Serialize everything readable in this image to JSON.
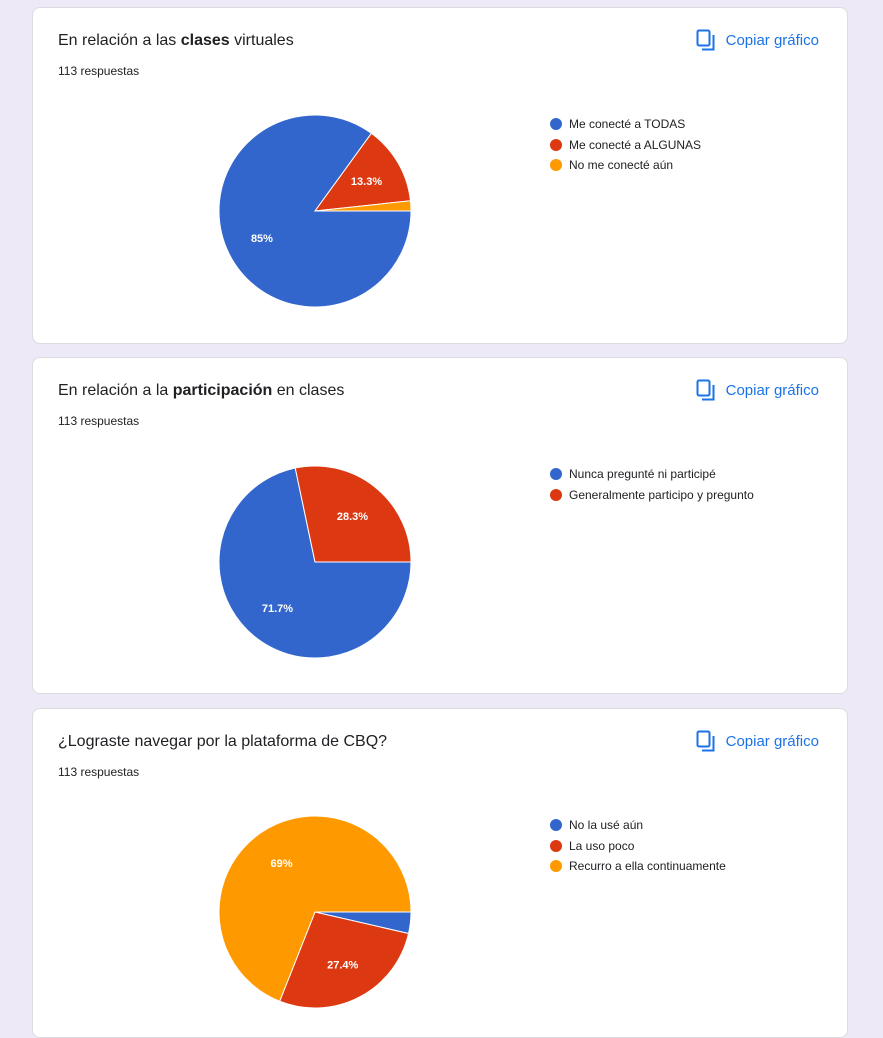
{
  "copy_label": "Copiar gráfico",
  "colors": {
    "blue": "#3366cc",
    "red": "#dc3912",
    "orange": "#ff9900",
    "accent": "#1a73e8"
  },
  "cards": [
    {
      "title_pre": "En relación a las ",
      "title_bold": "clases",
      "title_post": " virtuales",
      "count": "113 respuestas"
    },
    {
      "title_pre": "En relación a la ",
      "title_bold": "participación",
      "title_post": " en clases",
      "count": "113 respuestas"
    },
    {
      "title_pre": "¿Lograste navegar por la plataforma de CBQ?",
      "title_bold": "",
      "title_post": "",
      "count": "113 respuestas"
    }
  ],
  "chart_data": [
    {
      "type": "pie",
      "title": "En relación a las clases virtuales",
      "legend": "right",
      "slices": [
        {
          "label": "Me conecté a TODAS",
          "value": 85.0,
          "color": "#3366cc",
          "value_label": "85%"
        },
        {
          "label": "Me conecté a ALGUNAS",
          "value": 13.3,
          "color": "#dc3912",
          "value_label": "13.3%"
        },
        {
          "label": "No me conecté aún",
          "value": 1.7,
          "color": "#ff9900",
          "value_label": ""
        }
      ]
    },
    {
      "type": "pie",
      "title": "En relación a la participación en clases",
      "legend": "right",
      "slices": [
        {
          "label": "Nunca pregunté ni participé",
          "value": 71.7,
          "color": "#3366cc",
          "value_label": "71.7%"
        },
        {
          "label": "Generalmente participo y pregunto",
          "value": 28.3,
          "color": "#dc3912",
          "value_label": "28.3%"
        }
      ]
    },
    {
      "type": "pie",
      "title": "¿Lograste navegar por la plataforma de CBQ?",
      "legend": "right",
      "slices": [
        {
          "label": "No la usé aún",
          "value": 3.6,
          "color": "#3366cc",
          "value_label": ""
        },
        {
          "label": "La uso poco",
          "value": 27.4,
          "color": "#dc3912",
          "value_label": "27.4%"
        },
        {
          "label": "Recurro a ella continuamente",
          "value": 69.0,
          "color": "#ff9900",
          "value_label": "69%"
        }
      ]
    }
  ]
}
